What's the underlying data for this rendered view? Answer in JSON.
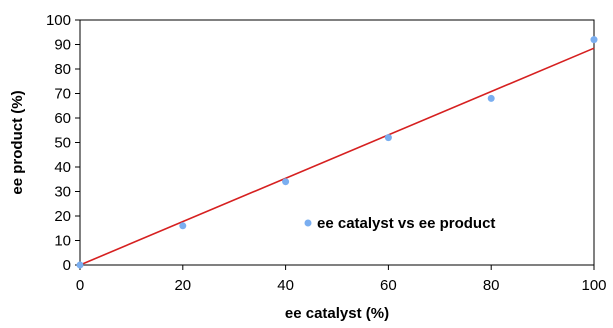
{
  "chart_data": {
    "type": "scatter",
    "xlabel": "ee catalyst (%)",
    "ylabel": "ee product (%)",
    "xlim": [
      0,
      100
    ],
    "ylim": [
      0,
      100
    ],
    "xticks": [
      "0",
      "20",
      "40",
      "60",
      "80",
      "100"
    ],
    "yticks": [
      "0",
      "10",
      "20",
      "30",
      "40",
      "50",
      "60",
      "70",
      "80",
      "90",
      "100"
    ],
    "series": [
      {
        "name": "ee catalyst vs ee product",
        "x": [
          0,
          20,
          40,
          60,
          80,
          100
        ],
        "y": [
          0,
          16,
          34,
          52,
          68,
          92
        ],
        "color": "#7aaef0"
      }
    ],
    "trendline": {
      "x": [
        0,
        100
      ],
      "y": [
        0,
        88.5
      ],
      "color": "#d62020"
    },
    "grid": false,
    "legend_position": "inside-lower-right"
  }
}
